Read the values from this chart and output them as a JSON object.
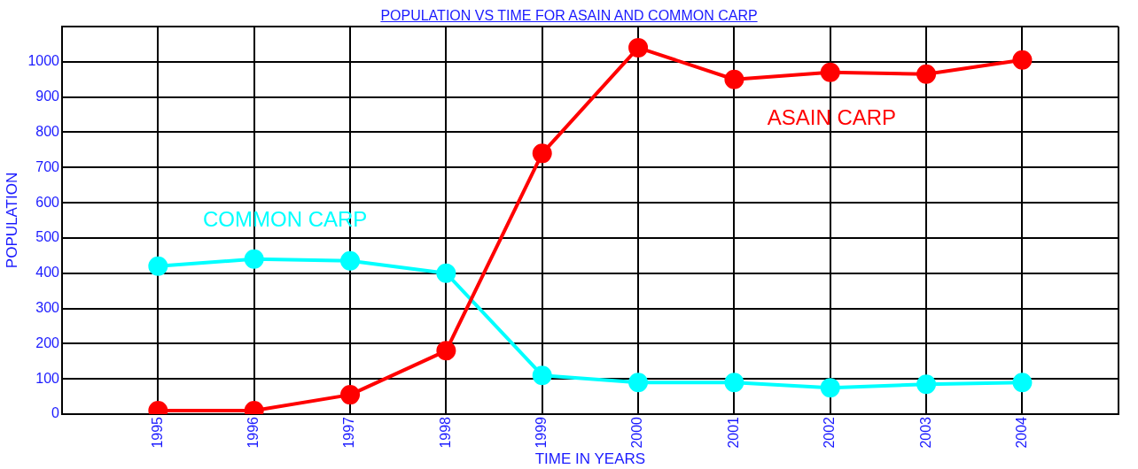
{
  "chart_data": {
    "type": "line",
    "title": "POPULATION VS TIME FOR ASAIN AND COMMON CARP",
    "xlabel": "TIME IN YEARS",
    "ylabel": "POPULATION",
    "x": [
      1995,
      1996,
      1997,
      1998,
      1999,
      2000,
      2001,
      2002,
      2003,
      2004
    ],
    "series": [
      {
        "name": "ASAIN CARP",
        "color": "#ff0000",
        "values": [
          10,
          10,
          55,
          180,
          740,
          1040,
          950,
          970,
          965,
          1005
        ]
      },
      {
        "name": "COMMON CARP",
        "color": "#00ffff",
        "values": [
          420,
          440,
          435,
          400,
          110,
          90,
          90,
          75,
          85,
          90
        ]
      }
    ],
    "xlim": [
      1994,
      2005
    ],
    "xticks": [
      {
        "value": 1994,
        "label": null
      },
      1995,
      1996,
      1997,
      1998,
      1999,
      2000,
      2001,
      2002,
      2003,
      2004,
      {
        "value": 2005,
        "label": null
      }
    ],
    "ylim": [
      0,
      1100
    ],
    "yticks": [
      0,
      100,
      200,
      300,
      400,
      500,
      600,
      700,
      800,
      900,
      1000,
      {
        "value": 1100,
        "label": null
      }
    ],
    "grid": true,
    "legend": false,
    "marker": "circle",
    "line_style": "solid"
  }
}
